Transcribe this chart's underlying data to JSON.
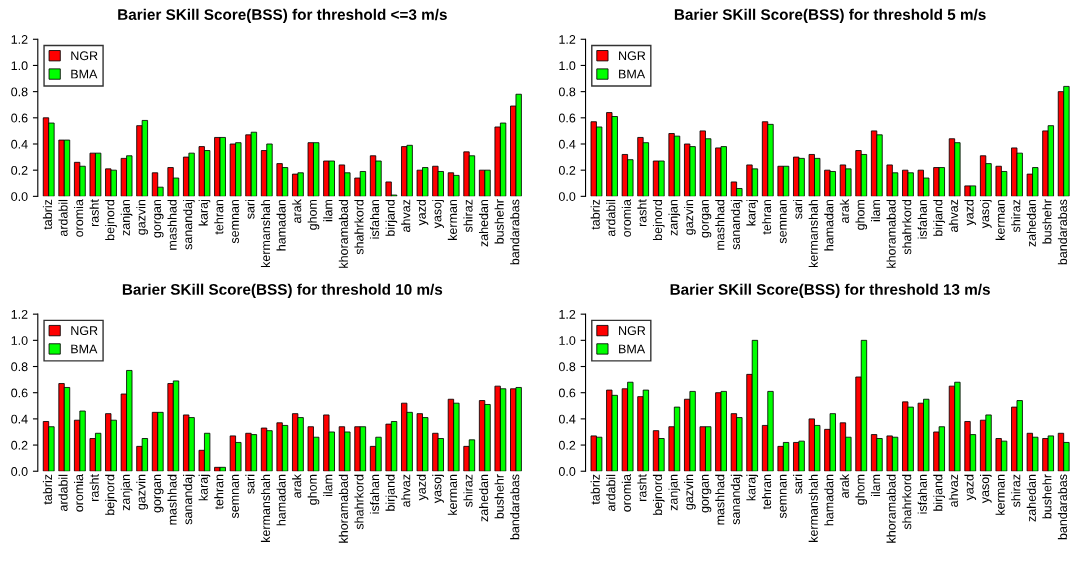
{
  "chart_data": [
    {
      "type": "bar",
      "title": "Barier SKill Score(BSS) for threshold <=3 m/s",
      "categories": [
        "tabriz",
        "ardabil",
        "oromia",
        "rasht",
        "bejnord",
        "zanjan",
        "gazvin",
        "gorgan",
        "mashhad",
        "sanandaj",
        "karaj",
        "tehran",
        "semnan",
        "sari",
        "kermanshah",
        "hamadan",
        "arak",
        "ghom",
        "ilam",
        "khoramabad",
        "shahrkord",
        "isfahan",
        "birjand",
        "ahvaz",
        "yazd",
        "yasoj",
        "kerman",
        "shiraz",
        "zahedan",
        "bushehr",
        "bandarabas"
      ],
      "ylim": [
        0,
        1.2
      ],
      "yticks": [
        {
          "value": 0,
          "label": "0.0"
        },
        {
          "value": 0.2,
          "label": "0.2"
        },
        {
          "value": 0.4,
          "label": "0.4"
        },
        {
          "value": 0.6,
          "label": "0.6"
        },
        {
          "value": 0.8,
          "label": "0.8"
        },
        {
          "value": 1.0,
          "label": "1.0"
        },
        {
          "value": 1.2,
          "label": "1.2"
        }
      ],
      "legend": "top left",
      "grid": false,
      "series": [
        {
          "name": "NGR",
          "color": "#ff0000",
          "values": [
            0.6,
            0.43,
            0.26,
            0.33,
            0.21,
            0.29,
            0.54,
            0.18,
            0.22,
            0.3,
            0.38,
            0.45,
            0.4,
            0.47,
            0.35,
            0.25,
            0.17,
            0.41,
            0.27,
            0.24,
            0.14,
            0.31,
            0.11,
            0.38,
            0.2,
            0.23,
            0.18,
            0.34,
            0.2,
            0.53,
            0.69
          ]
        },
        {
          "name": "BMA",
          "color": "#00ff00",
          "values": [
            0.56,
            0.43,
            0.23,
            0.33,
            0.2,
            0.31,
            0.58,
            0.07,
            0.14,
            0.33,
            0.35,
            0.45,
            0.41,
            0.49,
            0.4,
            0.22,
            0.18,
            0.41,
            0.27,
            0.18,
            0.19,
            0.27,
            0.01,
            0.39,
            0.22,
            0.19,
            0.16,
            0.31,
            0.2,
            0.56,
            0.78
          ]
        }
      ]
    },
    {
      "type": "bar",
      "title": "Barier SKill Score(BSS) for threshold 5 m/s",
      "categories": [
        "tabriz",
        "ardabil",
        "oromia",
        "rasht",
        "bejnord",
        "zanjan",
        "gazvin",
        "gorgan",
        "mashhad",
        "sanandaj",
        "karaj",
        "tehran",
        "semnan",
        "sari",
        "kermanshah",
        "hamadan",
        "arak",
        "ghom",
        "ilam",
        "khoramabad",
        "shahrkord",
        "isfahan",
        "birjand",
        "ahvaz",
        "yazd",
        "yasoj",
        "kerman",
        "shiraz",
        "zahedan",
        "bushehr",
        "bandarabas"
      ],
      "ylim": [
        0,
        1.2
      ],
      "yticks": [
        {
          "value": 0,
          "label": "0.0"
        },
        {
          "value": 0.2,
          "label": "0.2"
        },
        {
          "value": 0.4,
          "label": "0.4"
        },
        {
          "value": 0.6,
          "label": "0.6"
        },
        {
          "value": 0.8,
          "label": "0.8"
        },
        {
          "value": 1.0,
          "label": "1.0"
        },
        {
          "value": 1.2,
          "label": "1.2"
        }
      ],
      "legend": "top left",
      "grid": false,
      "series": [
        {
          "name": "NGR",
          "color": "#ff0000",
          "values": [
            0.57,
            0.64,
            0.32,
            0.45,
            0.27,
            0.48,
            0.4,
            0.5,
            0.37,
            0.11,
            0.24,
            0.57,
            0.23,
            0.3,
            0.32,
            0.2,
            0.24,
            0.35,
            0.5,
            0.24,
            0.2,
            0.2,
            0.22,
            0.44,
            0.08,
            0.31,
            0.23,
            0.37,
            0.17,
            0.5,
            0.8
          ]
        },
        {
          "name": "BMA",
          "color": "#00ff00",
          "values": [
            0.53,
            0.61,
            0.28,
            0.41,
            0.27,
            0.46,
            0.38,
            0.44,
            0.38,
            0.06,
            0.21,
            0.55,
            0.23,
            0.29,
            0.29,
            0.19,
            0.21,
            0.32,
            0.47,
            0.18,
            0.18,
            0.14,
            0.22,
            0.41,
            0.08,
            0.25,
            0.19,
            0.33,
            0.22,
            0.54,
            0.84
          ]
        }
      ]
    },
    {
      "type": "bar",
      "title": "Barier SKill Score(BSS) for threshold 10 m/s",
      "categories": [
        "tabriz",
        "ardabil",
        "oromia",
        "rasht",
        "bejnord",
        "zanjan",
        "gazvin",
        "gorgan",
        "mashhad",
        "sanandaj",
        "karaj",
        "tehran",
        "semnan",
        "sari",
        "kermanshah",
        "hamadan",
        "arak",
        "ghom",
        "ilam",
        "khoramabad",
        "shahrkord",
        "isfahan",
        "birjand",
        "ahvaz",
        "yazd",
        "yasoj",
        "kerman",
        "shiraz",
        "zahedan",
        "bushehr",
        "bandarabas"
      ],
      "ylim": [
        0,
        1.2
      ],
      "yticks": [
        {
          "value": 0,
          "label": "0.0"
        },
        {
          "value": 0.2,
          "label": "0.2"
        },
        {
          "value": 0.4,
          "label": "0.4"
        },
        {
          "value": 0.6,
          "label": "0.6"
        },
        {
          "value": 0.8,
          "label": "0.8"
        },
        {
          "value": 1.0,
          "label": "1.0"
        },
        {
          "value": 1.2,
          "label": "1.2"
        }
      ],
      "legend": "top left",
      "grid": false,
      "series": [
        {
          "name": "NGR",
          "color": "#ff0000",
          "values": [
            0.38,
            0.67,
            0.39,
            0.25,
            0.44,
            0.59,
            0.19,
            0.45,
            0.67,
            0.43,
            0.16,
            0.03,
            0.27,
            0.29,
            0.33,
            0.37,
            0.44,
            0.34,
            0.43,
            0.34,
            0.34,
            0.19,
            0.36,
            0.52,
            0.44,
            0.29,
            0.55,
            0.19,
            0.54,
            0.65,
            0.63
          ]
        },
        {
          "name": "BMA",
          "color": "#00ff00",
          "values": [
            0.34,
            0.64,
            0.46,
            0.29,
            0.39,
            0.77,
            0.25,
            0.45,
            0.69,
            0.41,
            0.29,
            0.03,
            0.22,
            0.28,
            0.31,
            0.35,
            0.41,
            0.26,
            0.3,
            0.3,
            0.34,
            0.26,
            0.38,
            0.45,
            0.41,
            0.25,
            0.52,
            0.24,
            0.51,
            0.63,
            0.64
          ]
        }
      ]
    },
    {
      "type": "bar",
      "title": "Barier SKill Score(BSS) for threshold 13 m/s",
      "categories": [
        "tabriz",
        "ardabil",
        "oromia",
        "rasht",
        "bejnord",
        "zanjan",
        "gazvin",
        "gorgan",
        "mashhad",
        "sanandaj",
        "karaj",
        "tehran",
        "semnan",
        "sari",
        "kermanshah",
        "hamadan",
        "arak",
        "ghom",
        "ilam",
        "khoramabad",
        "shahrkord",
        "isfahan",
        "birjand",
        "ahvaz",
        "yazd",
        "yasoj",
        "kerman",
        "shiraz",
        "zahedan",
        "bushehr",
        "bandarabas"
      ],
      "ylim": [
        0,
        1.2
      ],
      "yticks": [
        {
          "value": 0,
          "label": "0.0"
        },
        {
          "value": 0.2,
          "label": "0.2"
        },
        {
          "value": 0.4,
          "label": "0.4"
        },
        {
          "value": 0.6,
          "label": "0.6"
        },
        {
          "value": 0.8,
          "label": "0.8"
        },
        {
          "value": 1.0,
          "label": "1.0"
        },
        {
          "value": 1.2,
          "label": "1.2"
        }
      ],
      "legend": "top left",
      "grid": false,
      "series": [
        {
          "name": "NGR",
          "color": "#ff0000",
          "values": [
            0.27,
            0.62,
            0.63,
            0.57,
            0.31,
            0.34,
            0.55,
            0.34,
            0.6,
            0.44,
            0.74,
            0.35,
            0.19,
            0.22,
            0.4,
            0.32,
            0.37,
            0.72,
            0.28,
            0.27,
            0.53,
            0.52,
            0.3,
            0.65,
            0.38,
            0.39,
            0.25,
            0.49,
            0.29,
            0.25,
            0.29
          ]
        },
        {
          "name": "BMA",
          "color": "#00ff00",
          "values": [
            0.26,
            0.58,
            0.68,
            0.62,
            0.25,
            0.49,
            0.61,
            0.34,
            0.61,
            0.41,
            1.0,
            0.61,
            0.22,
            0.23,
            0.35,
            0.44,
            0.26,
            1.0,
            0.25,
            0.26,
            0.49,
            0.55,
            0.34,
            0.68,
            0.28,
            0.43,
            0.23,
            0.54,
            0.26,
            0.27,
            0.22
          ]
        }
      ]
    }
  ]
}
